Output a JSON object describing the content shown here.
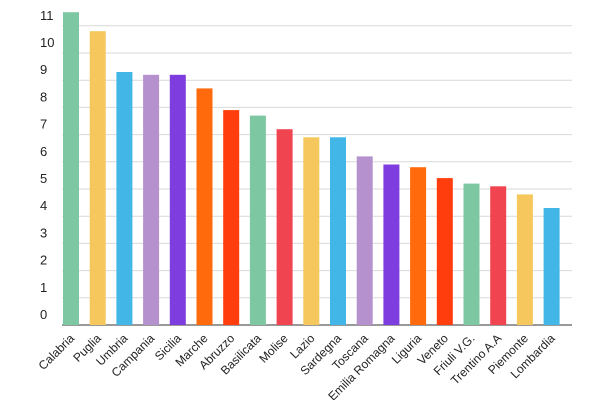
{
  "chart_data": {
    "type": "bar",
    "title": "",
    "xlabel": "",
    "ylabel": "",
    "ylim": [
      0,
      11.5
    ],
    "y_ticks": [
      0,
      1,
      2,
      3,
      4,
      5,
      6,
      7,
      8,
      9,
      10,
      11
    ],
    "grid": true,
    "categories": [
      "Calabria",
      "Puglia",
      "Umbria",
      "Campania",
      "Sicilia",
      "Marche",
      "Abruzzo",
      "Basilicata",
      "Molise",
      "Lazio",
      "Sardegna",
      "Toscana",
      "Emilia Romagna",
      "Liguria",
      "Veneto",
      "Friuli V.G.",
      "Trentino A.A",
      "Piemonte",
      "Lombardia"
    ],
    "values": [
      11.5,
      10.8,
      9.3,
      9.2,
      9.2,
      8.7,
      7.9,
      7.7,
      7.2,
      6.9,
      6.9,
      6.2,
      5.9,
      5.8,
      5.4,
      5.2,
      5.1,
      4.8,
      4.3
    ],
    "colors": [
      "#7dc8a3",
      "#f5c75c",
      "#42b7e7",
      "#b592ce",
      "#7e3dde",
      "#ff6a0d",
      "#ff3d0d",
      "#7dc8a3",
      "#f04451",
      "#f5c75c",
      "#42b7e7",
      "#b592ce",
      "#7e3dde",
      "#ff6a0d",
      "#ff3d0d",
      "#7dc8a3",
      "#f04451",
      "#f5c75c",
      "#42b7e7"
    ]
  }
}
